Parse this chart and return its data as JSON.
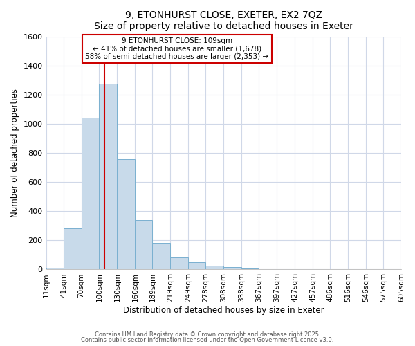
{
  "title": "9, ETONHURST CLOSE, EXETER, EX2 7QZ",
  "subtitle": "Size of property relative to detached houses in Exeter",
  "xlabel": "Distribution of detached houses by size in Exeter",
  "ylabel": "Number of detached properties",
  "property_size": 109,
  "annotation_line1": "9 ETONHURST CLOSE: 109sqm",
  "annotation_line2": "← 41% of detached houses are smaller (1,678)",
  "annotation_line3": "58% of semi-detached houses are larger (2,353) →",
  "bar_color": "#c8daea",
  "bar_edgecolor": "#7ab0d0",
  "redline_color": "#cc0000",
  "background_color": "#ffffff",
  "grid_color": "#d0d8e8",
  "bins": [
    11,
    41,
    70,
    100,
    130,
    160,
    189,
    219,
    249,
    278,
    308,
    338,
    367,
    397,
    427,
    457,
    486,
    516,
    546,
    575,
    605
  ],
  "counts": [
    10,
    285,
    1045,
    1280,
    760,
    340,
    185,
    85,
    50,
    25,
    15,
    5,
    2,
    0,
    0,
    0,
    0,
    0,
    0,
    0
  ],
  "ylim": [
    0,
    1600
  ],
  "yticks": [
    0,
    200,
    400,
    600,
    800,
    1000,
    1200,
    1400,
    1600
  ],
  "footnote1": "Contains HM Land Registry data © Crown copyright and database right 2025.",
  "footnote2": "Contains public sector information licensed under the Open Government Licence v3.0."
}
